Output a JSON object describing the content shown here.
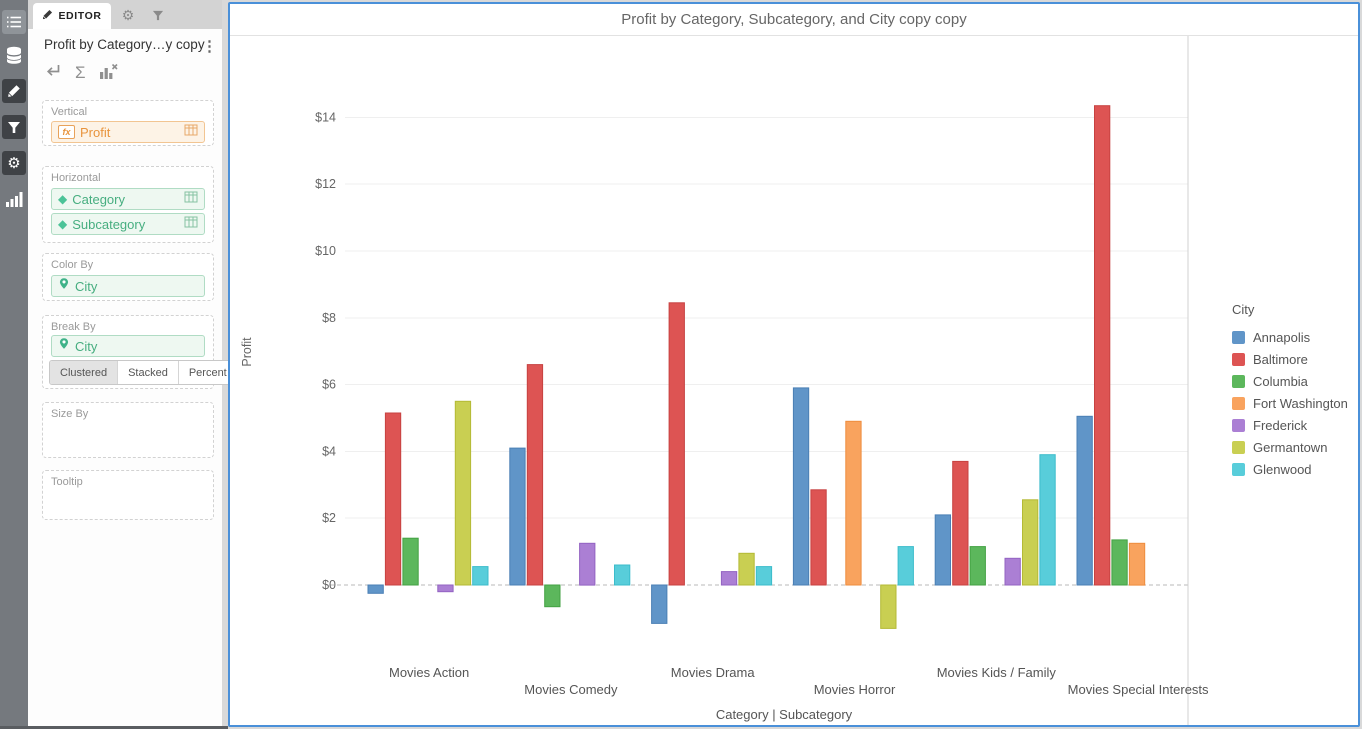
{
  "app": {
    "left_rail": {
      "items": [
        {
          "icon": "list-icon"
        },
        {
          "icon": "database-icon"
        },
        {
          "icon": "pencil-icon"
        },
        {
          "icon": "filter-icon"
        },
        {
          "icon": "gear-icon"
        },
        {
          "icon": "bar-chart-icon"
        }
      ]
    }
  },
  "icons": {
    "sigma": "Σ",
    "kebab": "⋮",
    "diamond": "◆",
    "gear": "⚙",
    "fx": "fx"
  },
  "editor_panel": {
    "tabs": {
      "editor_label": "EDITOR"
    },
    "title": "Profit by Category…y copy",
    "sections": {
      "vertical": {
        "label": "Vertical",
        "field": "Profit"
      },
      "horizontal": {
        "label": "Horizontal",
        "fields": [
          {
            "name": "Category"
          },
          {
            "name": "Subcategory"
          }
        ]
      },
      "color_by": {
        "label": "Color By",
        "field": "City"
      },
      "break_by": {
        "label": "Break By",
        "field": "City",
        "modes": [
          "Clustered",
          "Stacked",
          "Percent"
        ],
        "selected_mode": "Clustered"
      },
      "size_by": {
        "label": "Size By"
      },
      "tooltip": {
        "label": "Tooltip"
      }
    }
  },
  "chart": {
    "title": "Profit by Category, Subcategory, and City copy copy",
    "legend_title": "City"
  },
  "chart_data": {
    "type": "bar",
    "title": "Profit by Category, Subcategory, and City copy copy",
    "ylabel": "Profit",
    "xlabel_parts": [
      "Category",
      "Subcategory"
    ],
    "xlabel_separator": "|",
    "grid": true,
    "zero_line": "dashed",
    "legend_position": "right",
    "legend_title": "City",
    "ylim": [
      -2.2,
      15
    ],
    "y_ticks": [
      {
        "v": 0,
        "label": "$0"
      },
      {
        "v": 2,
        "label": "$2"
      },
      {
        "v": 4,
        "label": "$4"
      },
      {
        "v": 6,
        "label": "$6"
      },
      {
        "v": 8,
        "label": "$8"
      },
      {
        "v": 10,
        "label": "$10"
      },
      {
        "v": 12,
        "label": "$12"
      },
      {
        "v": 14,
        "label": "$14"
      }
    ],
    "categories": [
      "Movies Action",
      "Movies Comedy",
      "Movies Drama",
      "Movies Horror",
      "Movies Kids / Family",
      "Movies Special Interests"
    ],
    "series": [
      {
        "name": "Annapolis",
        "color": "#6095c8",
        "stroke": "#4a7fb5",
        "values": [
          -0.25,
          4.1,
          -1.15,
          5.9,
          2.1,
          5.05
        ]
      },
      {
        "name": "Baltimore",
        "color": "#dd5453",
        "stroke": "#c74241",
        "values": [
          5.15,
          6.6,
          8.45,
          2.85,
          3.7,
          14.35
        ]
      },
      {
        "name": "Columbia",
        "color": "#5cb75c",
        "stroke": "#43a243",
        "values": [
          1.4,
          -0.65,
          null,
          null,
          1.15,
          1.35
        ]
      },
      {
        "name": "Fort Washington",
        "color": "#f9a35e",
        "stroke": "#ee8d3e",
        "values": [
          null,
          null,
          null,
          4.9,
          null,
          1.25
        ]
      },
      {
        "name": "Frederick",
        "color": "#ab7fd4",
        "stroke": "#9363c2",
        "values": [
          -0.2,
          1.25,
          0.4,
          null,
          0.8,
          null
        ]
      },
      {
        "name": "Germantown",
        "color": "#c9cf52",
        "stroke": "#b4ba35",
        "values": [
          5.5,
          null,
          0.95,
          -1.3,
          2.55,
          null
        ]
      },
      {
        "name": "Glenwood",
        "color": "#58cdda",
        "stroke": "#3bbccb",
        "values": [
          0.55,
          0.6,
          0.55,
          1.15,
          3.9,
          null
        ]
      }
    ]
  }
}
